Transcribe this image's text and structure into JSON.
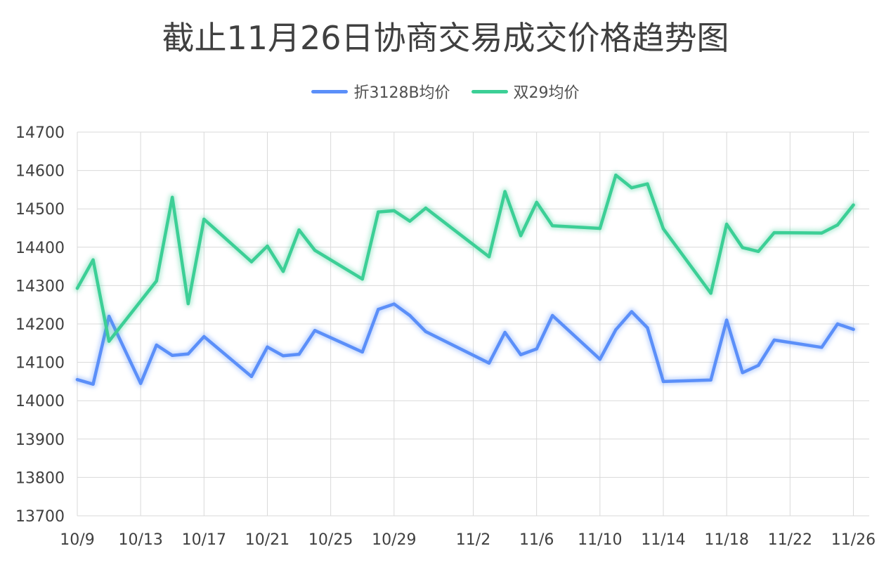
{
  "chart_data": {
    "type": "line",
    "title": "截止11月26日协商交易成交价格趋势图",
    "xlabel": "",
    "ylabel": "",
    "ylim": [
      13700,
      14700
    ],
    "yticks": [
      14700,
      14600,
      14500,
      14400,
      14300,
      14200,
      14100,
      14000,
      13900,
      13800,
      13700
    ],
    "xlim": [
      "10/9",
      "11/27"
    ],
    "xticks": [
      "10/9",
      "10/13",
      "10/17",
      "10/21",
      "10/25",
      "10/29",
      "11/2",
      "11/6",
      "11/10",
      "11/14",
      "11/18",
      "11/22",
      "11/26"
    ],
    "grid": true,
    "legend_position": "top",
    "series": [
      {
        "name": "折3128B均价",
        "color": "#5b8ff9",
        "points": [
          [
            "10/9",
            14055
          ],
          [
            "10/10",
            14043
          ],
          [
            "10/11",
            14220
          ],
          [
            "10/13",
            14045
          ],
          [
            "10/14",
            14145
          ],
          [
            "10/15",
            14118
          ],
          [
            "10/16",
            14122
          ],
          [
            "10/17",
            14167
          ],
          [
            "10/20",
            14063
          ],
          [
            "10/21",
            14140
          ],
          [
            "10/22",
            14117
          ],
          [
            "10/23",
            14121
          ],
          [
            "10/24",
            14183
          ],
          [
            "10/27",
            14127
          ],
          [
            "10/28",
            14238
          ],
          [
            "10/29",
            14252
          ],
          [
            "10/30",
            14222
          ],
          [
            "10/31",
            14180
          ],
          [
            "11/3",
            14098
          ],
          [
            "11/4",
            14178
          ],
          [
            "11/5",
            14120
          ],
          [
            "11/6",
            14135
          ],
          [
            "11/7",
            14222
          ],
          [
            "11/10",
            14108
          ],
          [
            "11/11",
            14185
          ],
          [
            "11/12",
            14232
          ],
          [
            "11/13",
            14190
          ],
          [
            "11/14",
            14050
          ],
          [
            "11/17",
            14054
          ],
          [
            "11/18",
            14210
          ],
          [
            "11/19",
            14073
          ],
          [
            "11/20",
            14092
          ],
          [
            "11/21",
            14158
          ],
          [
            "11/24",
            14139
          ],
          [
            "11/25",
            14200
          ],
          [
            "11/26",
            14186
          ]
        ]
      },
      {
        "name": "双29均价",
        "color": "#3ccf96",
        "points": [
          [
            "10/9",
            14293
          ],
          [
            "10/10",
            14367
          ],
          [
            "10/11",
            14155
          ],
          [
            "10/14",
            14312
          ],
          [
            "10/15",
            14530
          ],
          [
            "10/16",
            14253
          ],
          [
            "10/17",
            14473
          ],
          [
            "10/20",
            14362
          ],
          [
            "10/21",
            14403
          ],
          [
            "10/22",
            14337
          ],
          [
            "10/23",
            14445
          ],
          [
            "10/24",
            14392
          ],
          [
            "10/27",
            14317
          ],
          [
            "10/28",
            14492
          ],
          [
            "10/29",
            14495
          ],
          [
            "10/30",
            14468
          ],
          [
            "10/31",
            14502
          ],
          [
            "11/3",
            14375
          ],
          [
            "11/4",
            14545
          ],
          [
            "11/5",
            14430
          ],
          [
            "11/6",
            14517
          ],
          [
            "11/7",
            14456
          ],
          [
            "11/10",
            14449
          ],
          [
            "11/11",
            14588
          ],
          [
            "11/12",
            14555
          ],
          [
            "11/13",
            14565
          ],
          [
            "11/14",
            14448
          ],
          [
            "11/17",
            14280
          ],
          [
            "11/18",
            14460
          ],
          [
            "11/19",
            14399
          ],
          [
            "11/20",
            14389
          ],
          [
            "11/21",
            14438
          ],
          [
            "11/24",
            14437
          ],
          [
            "11/25",
            14458
          ],
          [
            "11/26",
            14510
          ]
        ]
      }
    ]
  }
}
